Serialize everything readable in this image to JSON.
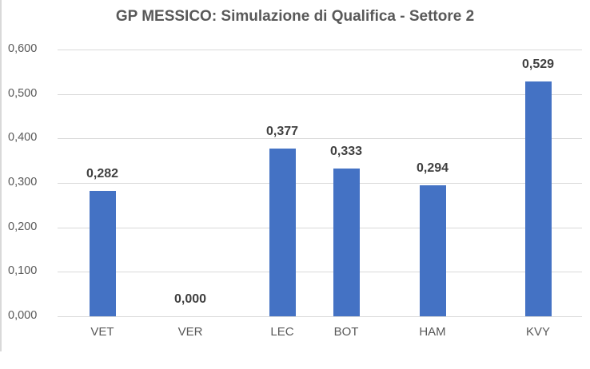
{
  "chart_data": {
    "type": "bar",
    "title": "GP MESSICO: Simulazione di Qualifica - Settore 2",
    "xlabel": "",
    "ylabel": "",
    "categories": [
      "VET",
      "VER",
      "LEC",
      "BOT",
      "HAM",
      "KVY"
    ],
    "values": [
      0.282,
      0.0,
      0.377,
      0.333,
      0.294,
      0.529
    ],
    "data_labels": [
      "0,282",
      "0,000",
      "0,377",
      "0,333",
      "0,294",
      "0,529"
    ],
    "ylim": [
      0,
      0.6
    ],
    "yticks": [
      "0,000",
      "0,100",
      "0,200",
      "0,300",
      "0,400",
      "0,500",
      "0,600"
    ],
    "grid": true,
    "legend": "none",
    "bar_color": "#4472c4"
  }
}
